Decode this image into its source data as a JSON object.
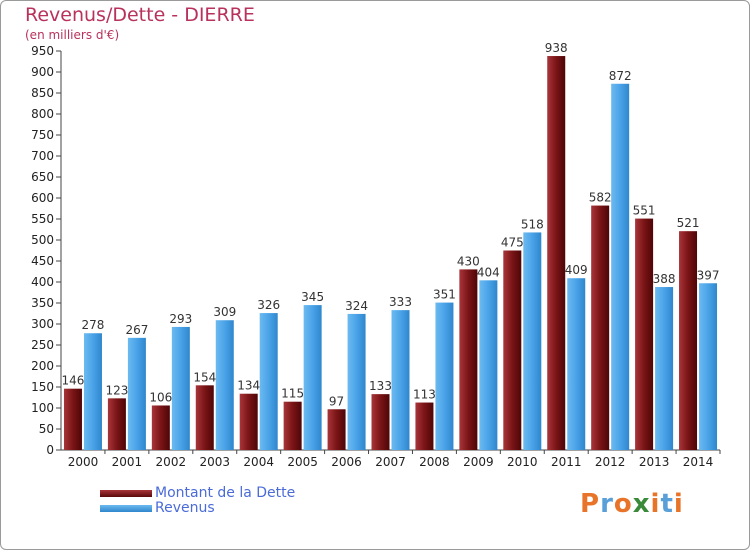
{
  "header": {
    "title": "Revenus/Dette - DIERRE",
    "subtitle": "(en milliers d'€)"
  },
  "chart_data": {
    "type": "bar",
    "title": "Revenus/Dette - DIERRE",
    "subtitle": "(en milliers d'€)",
    "categories": [
      "2000",
      "2001",
      "2002",
      "2003",
      "2004",
      "2005",
      "2006",
      "2007",
      "2008",
      "2009",
      "2010",
      "2011",
      "2012",
      "2013",
      "2014"
    ],
    "series": [
      {
        "name": "Montant de la Dette",
        "color": "#7a1416",
        "values": [
          146,
          123,
          106,
          154,
          134,
          115,
          97,
          133,
          113,
          430,
          475,
          938,
          582,
          551,
          521
        ]
      },
      {
        "name": "Revenus",
        "color": "#4aa3e8",
        "values": [
          278,
          267,
          293,
          309,
          326,
          345,
          324,
          333,
          351,
          404,
          518,
          409,
          872,
          388,
          397
        ]
      }
    ],
    "ylim": [
      0,
      950
    ],
    "ytick_step": 50,
    "grid": false,
    "legend": "bottom-left"
  },
  "legend": {
    "items": [
      {
        "label": "Montant de la Dette",
        "color": "#7a1416"
      },
      {
        "label": "Revenus",
        "color": "#4aa3e8"
      }
    ]
  },
  "logo": {
    "text": "Proxiti",
    "letter_colors": [
      "#e8742a",
      "#5aa0d8",
      "#e8742a",
      "#3a8a3a",
      "#e8742a",
      "#5aa0d8",
      "#e8742a"
    ]
  }
}
